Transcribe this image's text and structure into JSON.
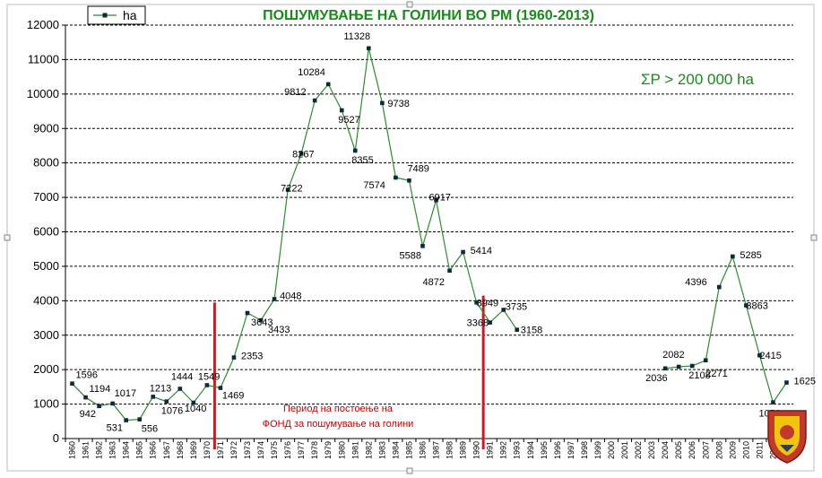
{
  "chart_data": {
    "type": "line",
    "title": "ПОШУМУВАЊЕ НА ГОЛИНИ ВО РМ (1960-2013)",
    "legend": "ha",
    "legend_position": "top-left",
    "annotation": "ΣP > 200 000 ha",
    "period_label_line1": "Период на постоење на",
    "period_label_line2": "ФОНД за пошумување на голини",
    "period_start": 1971,
    "period_end": 1990,
    "ylim": [
      0,
      12000
    ],
    "y_ticks": [
      0,
      1000,
      2000,
      3000,
      4000,
      5000,
      6000,
      7000,
      8000,
      9000,
      10000,
      11000,
      12000
    ],
    "x_ticks": [
      1960,
      1961,
      1962,
      1963,
      1964,
      1965,
      1966,
      1967,
      1968,
      1969,
      1970,
      1971,
      1972,
      1973,
      1974,
      1975,
      1976,
      1977,
      1978,
      1979,
      1980,
      1981,
      1982,
      1983,
      1984,
      1985,
      1986,
      1987,
      1988,
      1989,
      1990,
      1991,
      1992,
      1993,
      1994,
      1995,
      1996,
      1997,
      1998,
      1999,
      2000,
      2001,
      2002,
      2003,
      2004,
      2005,
      2006,
      2007,
      2008,
      2009,
      2010,
      2011,
      2012,
      2013
    ],
    "grid": "horizontal-dashed",
    "series": [
      {
        "name": "ha",
        "color": "#2e8b2e",
        "segments": [
          {
            "x": [
              1960,
              1961,
              1962,
              1963,
              1964,
              1965,
              1966,
              1967,
              1968,
              1969,
              1970,
              1971,
              1972,
              1973,
              1974,
              1975,
              1976,
              1977,
              1978,
              1979,
              1980,
              1981,
              1982,
              1983,
              1984,
              1985,
              1986,
              1987,
              1988,
              1989,
              1990,
              1991,
              1992,
              1993
            ],
            "y": [
              1596,
              1194,
              942,
              1017,
              531,
              556,
              1213,
              1076,
              1444,
              1040,
              1549,
              1469,
              2353,
              3643,
              3433,
              4048,
              7222,
              8267,
              9812,
              10284,
              9527,
              8355,
              11328,
              9738,
              7574,
              7489,
              5588,
              6917,
              4872,
              5414,
              3949,
              3368,
              3735,
              3158
            ]
          },
          {
            "x": [
              2004,
              2005,
              2006,
              2007,
              2008,
              2009,
              2010,
              2011,
              2012,
              2013
            ],
            "y": [
              2036,
              2082,
              2108,
              2271,
              4396,
              5285,
              3863,
              2415,
              1050,
              1625
            ]
          }
        ]
      }
    ],
    "labels": [
      {
        "year": 1960,
        "text": "1596"
      },
      {
        "year": 1961,
        "text": "1194"
      },
      {
        "year": 1962,
        "text": "942"
      },
      {
        "year": 1963,
        "text": "1017"
      },
      {
        "year": 1964,
        "text": "531"
      },
      {
        "year": 1965,
        "text": "556"
      },
      {
        "year": 1966,
        "text": "1213"
      },
      {
        "year": 1967,
        "text": "1076"
      },
      {
        "year": 1968,
        "text": "1444"
      },
      {
        "year": 1969,
        "text": "1040"
      },
      {
        "year": 1970,
        "text": "1549"
      },
      {
        "year": 1971,
        "text": "1469"
      },
      {
        "year": 1972,
        "text": "2353"
      },
      {
        "year": 1973,
        "text": "3643"
      },
      {
        "year": 1974,
        "text": "3433"
      },
      {
        "year": 1975,
        "text": "4048"
      },
      {
        "year": 1976,
        "text": "7222"
      },
      {
        "year": 1977,
        "text": "8267"
      },
      {
        "year": 1978,
        "text": "9812"
      },
      {
        "year": 1979,
        "text": "10284"
      },
      {
        "year": 1980,
        "text": "9527"
      },
      {
        "year": 1981,
        "text": "8355"
      },
      {
        "year": 1982,
        "text": "11328"
      },
      {
        "year": 1983,
        "text": "9738"
      },
      {
        "year": 1984,
        "text": "7574"
      },
      {
        "year": 1985,
        "text": "7489"
      },
      {
        "year": 1986,
        "text": "5588"
      },
      {
        "year": 1987,
        "text": "6917"
      },
      {
        "year": 1988,
        "text": "4872"
      },
      {
        "year": 1989,
        "text": "5414"
      },
      {
        "year": 1990,
        "text": "3949"
      },
      {
        "year": 1991,
        "text": "3368"
      },
      {
        "year": 1992,
        "text": "3735"
      },
      {
        "year": 1993,
        "text": "3158"
      },
      {
        "year": 2004,
        "text": "2036"
      },
      {
        "year": 2005,
        "text": "2082"
      },
      {
        "year": 2006,
        "text": "2108"
      },
      {
        "year": 2007,
        "text": "2271"
      },
      {
        "year": 2008,
        "text": "4396"
      },
      {
        "year": 2009,
        "text": "5285"
      },
      {
        "year": 2010,
        "text": "3863"
      },
      {
        "year": 2011,
        "text": "2415"
      },
      {
        "year": 2012,
        "text": "1050"
      },
      {
        "year": 2013,
        "text": "1625"
      }
    ]
  }
}
